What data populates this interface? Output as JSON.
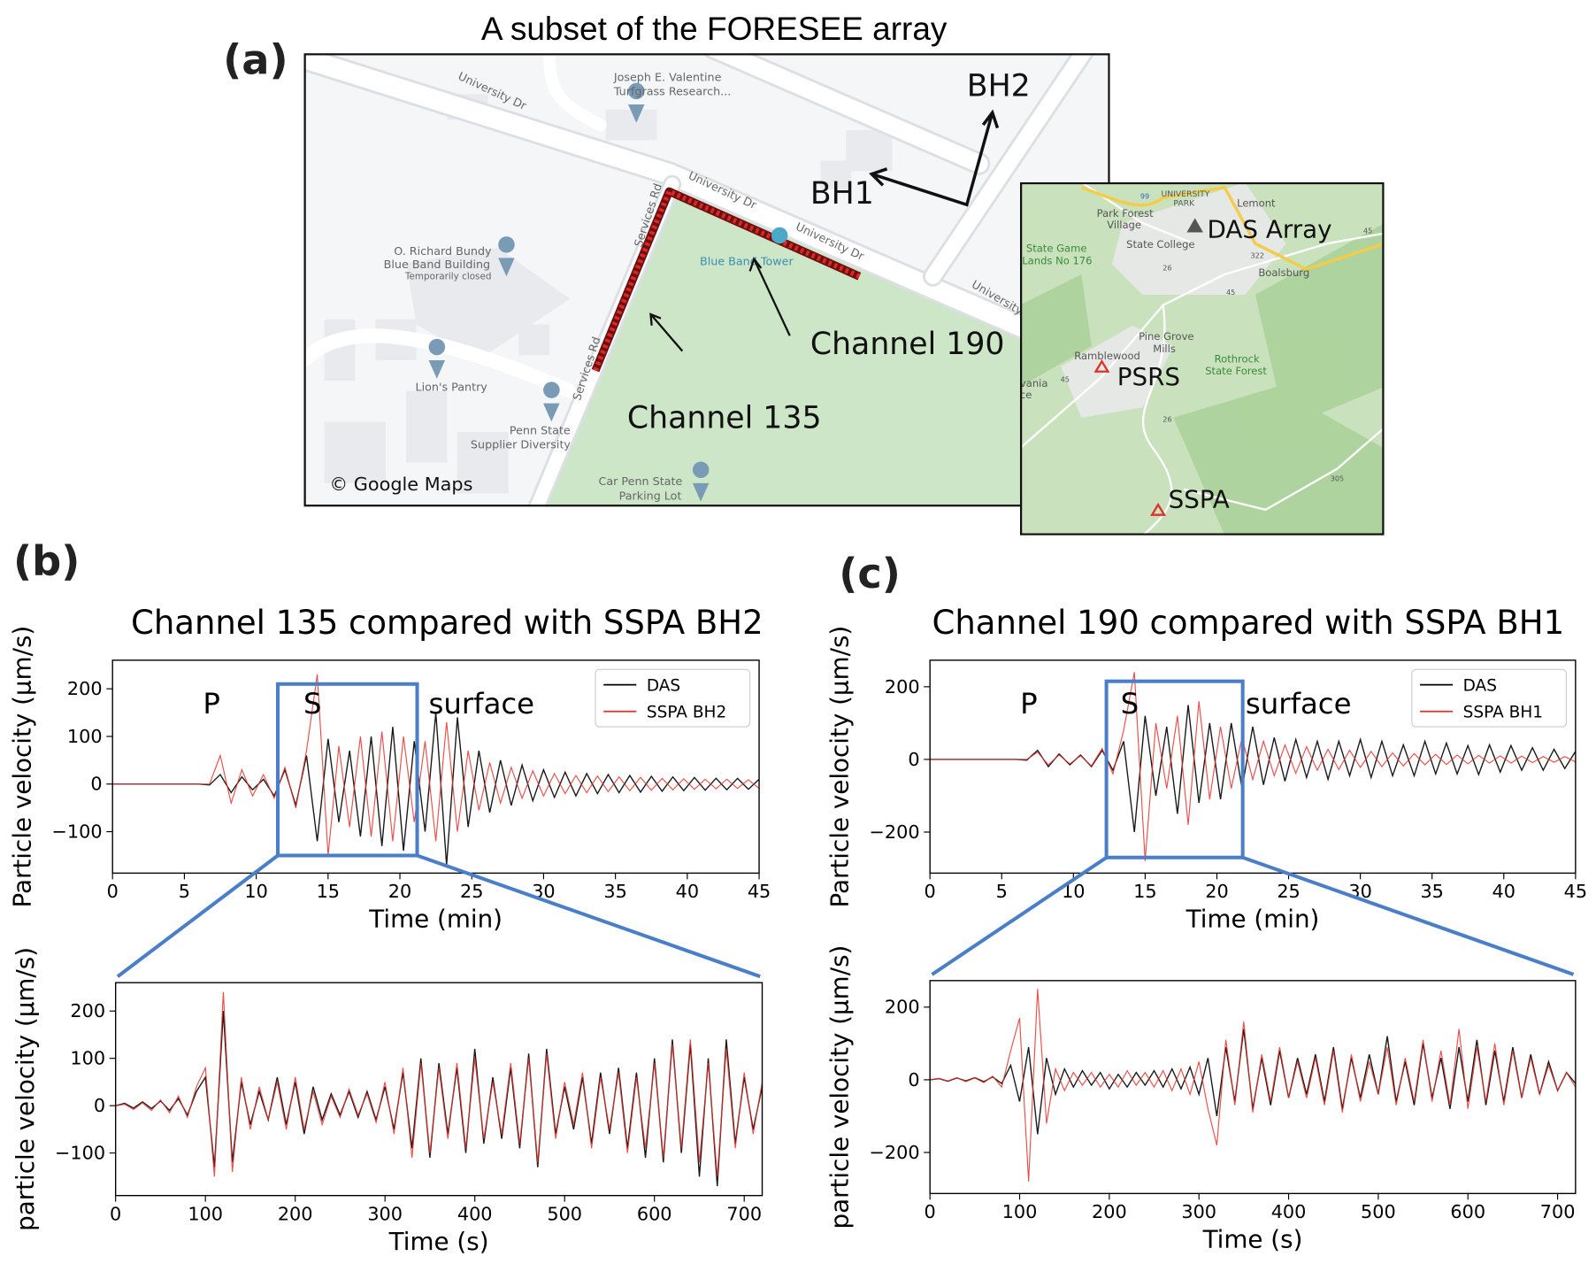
{
  "panel_labels": {
    "a": "(a)",
    "b": "(b)",
    "c": "(c)"
  },
  "map": {
    "title": "A subset of the FORESEE array",
    "labels": {
      "bh2": "BH2",
      "bh1": "BH1",
      "channel_190": "Channel 190",
      "channel_135": "Channel 135",
      "copyright": "© Google Maps",
      "valentine_1": "Joseph E. Valentine",
      "valentine_2": "Turfgrass Research...",
      "bundy_1": "O. Richard Bundy",
      "bundy_2": "Blue Band Building",
      "bundy_3": "Temporarily closed",
      "tower": "Blue Band Tower",
      "pantry": "Lion's Pantry",
      "supplier_1": "Penn State",
      "supplier_2": "Supplier Diversity",
      "parking_1": "Car Penn State",
      "parking_2": "Parking Lot",
      "road_univ_1": "University Dr",
      "road_univ_2": "University Dr",
      "road_univ_3": "University Dr",
      "road_univ_4": "University Dr",
      "road_services_1": "Services Rd",
      "road_services_2": "Services Rd"
    },
    "inset": {
      "das": "DAS Array",
      "psrs": "PSRS",
      "sspa": "SSPA",
      "park_forest_1": "Park Forest",
      "park_forest_2": "Village",
      "univ_park_1": "UNIVERSITY",
      "univ_park_2": "PARK",
      "lemont": "Lemont",
      "state_college": "State College",
      "game_lands_1": "State Game",
      "game_lands_2": "Lands No 176",
      "boalsburg": "Boalsburg",
      "pine_grove_1": "Pine Grove",
      "pine_grove_2": "Mills",
      "ramblewood": "Ramblewood",
      "rothrock_1": "Rothrock",
      "rothrock_2": "State Forest",
      "route_45a": "45",
      "route_45b": "45",
      "route_45c": "45",
      "route_26a": "26",
      "route_26b": "26",
      "route_322": "322",
      "route_305": "305",
      "route_99": "99",
      "frag_1": "vania",
      "frag_2": "ce"
    },
    "colors": {
      "park": "#cde6c8",
      "land": "#f5f6f8",
      "road": "#ffffff",
      "fiber": "#d42020",
      "inset_green": "#b9d9ac",
      "station": "#e0302a",
      "das_marker": "#555555"
    }
  },
  "chart_data": [
    {
      "id": "b-top",
      "type": "line",
      "title": "Channel 135 compared with SSPA BH2",
      "xlabel": "Time (min)",
      "ylabel": "Particle velocity (μm/s)",
      "xlim": [
        0,
        45
      ],
      "ylim": [
        -187,
        260
      ],
      "xticks": [
        0,
        5,
        10,
        15,
        20,
        25,
        30,
        35,
        40,
        45
      ],
      "xticklabels": [
        "0",
        "5",
        "10",
        "15",
        "20",
        "25",
        "30",
        "35",
        "40",
        "45"
      ],
      "yticks": [
        -100,
        0,
        100,
        200
      ],
      "yticklabels": [
        "−100",
        "0",
        "100",
        "200"
      ],
      "annotations": [
        {
          "text": "P",
          "x": 7,
          "y": 160
        },
        {
          "text": "S",
          "x": 14,
          "y": 160
        },
        {
          "text": "surface",
          "x": 22,
          "y": 160
        }
      ],
      "legend": {
        "position": "top-right"
      },
      "zoom_box": {
        "x": [
          11.5,
          21.2
        ],
        "y": [
          -150,
          210
        ],
        "color": "#4a7fc8"
      },
      "x": [
        0,
        0.75,
        1.5,
        2.25,
        3,
        3.75,
        4.5,
        5.25,
        6,
        6.75,
        7.5,
        8.25,
        9,
        9.75,
        10.5,
        11.25,
        12,
        12.75,
        13.5,
        14.25,
        15,
        15.75,
        16.5,
        17.25,
        18,
        18.75,
        19.5,
        20.25,
        21,
        21.75,
        22.5,
        23.25,
        24,
        24.75,
        25.5,
        26.25,
        27,
        27.75,
        28.5,
        29.25,
        30,
        30.75,
        31.5,
        32.25,
        33,
        33.75,
        34.5,
        35.25,
        36,
        36.75,
        37.5,
        38.25,
        39,
        39.75,
        40.5,
        41.25,
        42,
        42.75,
        43.5,
        44.25,
        45
      ],
      "series": [
        {
          "name": "DAS",
          "color": "#000000",
          "values": [
            0,
            0,
            0,
            0,
            0,
            0,
            0,
            0,
            0,
            -2,
            20,
            -18,
            15,
            -12,
            10,
            -25,
            30,
            -45,
            60,
            -120,
            95,
            -80,
            70,
            -110,
            100,
            -130,
            120,
            -140,
            90,
            -100,
            150,
            -170,
            140,
            -90,
            70,
            -60,
            50,
            -45,
            40,
            -35,
            30,
            -28,
            25,
            -25,
            22,
            -20,
            20,
            -18,
            18,
            -17,
            16,
            -15,
            15,
            -14,
            14,
            -13,
            12,
            -12,
            12,
            -11,
            10
          ]
        },
        {
          "name": "SSPA BH2",
          "color": "#e8302a",
          "values": [
            0,
            0,
            0,
            0,
            0,
            0,
            0,
            0,
            0,
            0,
            60,
            -40,
            30,
            -25,
            20,
            -30,
            35,
            -50,
            70,
            230,
            -150,
            80,
            -90,
            100,
            -110,
            110,
            -120,
            100,
            -80,
            90,
            -120,
            130,
            -100,
            70,
            -55,
            45,
            -40,
            35,
            -30,
            28,
            -25,
            22,
            -20,
            18,
            -18,
            17,
            -16,
            15,
            -14,
            14,
            -13,
            12,
            -12,
            11,
            -11,
            10,
            -10,
            10,
            -9,
            9,
            -9
          ]
        }
      ]
    },
    {
      "id": "b-bottom",
      "type": "line",
      "xlabel": "Time (s)",
      "ylabel": "particle velocity (μm/s)",
      "xlim": [
        0,
        720
      ],
      "ylim": [
        -190,
        260
      ],
      "xticks": [
        0,
        100,
        200,
        300,
        400,
        500,
        600,
        700
      ],
      "xticklabels": [
        "0",
        "100",
        "200",
        "300",
        "400",
        "500",
        "600",
        "700"
      ],
      "yticks": [
        -100,
        0,
        100,
        200
      ],
      "yticklabels": [
        "−100",
        "0",
        "100",
        "200"
      ],
      "x": [
        0,
        10,
        20,
        30,
        40,
        50,
        60,
        70,
        80,
        90,
        100,
        110,
        120,
        130,
        140,
        150,
        160,
        170,
        180,
        190,
        200,
        210,
        220,
        230,
        240,
        250,
        260,
        270,
        280,
        290,
        300,
        310,
        320,
        330,
        340,
        350,
        360,
        370,
        380,
        390,
        400,
        410,
        420,
        430,
        440,
        450,
        460,
        470,
        480,
        490,
        500,
        510,
        520,
        530,
        540,
        550,
        560,
        570,
        580,
        590,
        600,
        610,
        620,
        630,
        640,
        650,
        660,
        670,
        680,
        690,
        700,
        710,
        720
      ],
      "series": [
        {
          "name": "DAS",
          "color": "#000000",
          "values": [
            0,
            5,
            -5,
            8,
            -6,
            10,
            -10,
            15,
            -20,
            30,
            60,
            -130,
            200,
            -120,
            50,
            -40,
            30,
            -30,
            60,
            -40,
            50,
            -60,
            40,
            -30,
            25,
            -20,
            30,
            -25,
            30,
            -30,
            40,
            -50,
            70,
            -90,
            100,
            -110,
            90,
            -60,
            80,
            -100,
            120,
            -80,
            60,
            -70,
            80,
            -90,
            110,
            -130,
            120,
            -60,
            40,
            -50,
            60,
            -80,
            70,
            -60,
            80,
            -90,
            70,
            -110,
            100,
            -120,
            140,
            -100,
            130,
            -150,
            100,
            -170,
            140,
            -80,
            60,
            -50,
            40
          ]
        },
        {
          "name": "SSPA BH2",
          "color": "#e8302a",
          "values": [
            0,
            3,
            -8,
            6,
            -10,
            12,
            -15,
            20,
            -25,
            40,
            80,
            -150,
            240,
            -140,
            60,
            -50,
            40,
            -30,
            50,
            -50,
            60,
            -50,
            30,
            -40,
            20,
            -25,
            35,
            -20,
            25,
            -35,
            50,
            -60,
            80,
            -110,
            90,
            -100,
            80,
            -70,
            90,
            -90,
            100,
            -70,
            50,
            -60,
            90,
            -80,
            100,
            -120,
            110,
            -70,
            50,
            -40,
            70,
            -90,
            60,
            -50,
            70,
            -100,
            60,
            -90,
            90,
            -110,
            130,
            -90,
            140,
            -120,
            90,
            -150,
            120,
            -90,
            70,
            -60,
            50
          ]
        }
      ]
    },
    {
      "id": "c-top",
      "type": "line",
      "title": "Channel 190 compared with SSPA BH1",
      "xlabel": "Time (min)",
      "ylabel": "Particle velocity (μm/s)",
      "xlim": [
        0,
        45
      ],
      "ylim": [
        -313,
        273
      ],
      "xticks": [
        0,
        5,
        10,
        15,
        20,
        25,
        30,
        35,
        40,
        45
      ],
      "xticklabels": [
        "0",
        "5",
        "10",
        "15",
        "20",
        "25",
        "30",
        "35",
        "40",
        "45"
      ],
      "yticks": [
        -200,
        0,
        200
      ],
      "yticklabels": [
        "−200",
        "0",
        "200"
      ],
      "annotations": [
        {
          "text": "P",
          "x": 7,
          "y": 160
        },
        {
          "text": "S",
          "x": 14,
          "y": 160
        },
        {
          "text": "surface",
          "x": 22,
          "y": 160
        }
      ],
      "legend": {
        "position": "top-right"
      },
      "zoom_box": {
        "x": [
          12.3,
          21.8
        ],
        "y": [
          -270,
          215
        ],
        "color": "#4a7fc8"
      },
      "x": [
        0,
        0.75,
        1.5,
        2.25,
        3,
        3.75,
        4.5,
        5.25,
        6,
        6.75,
        7.5,
        8.25,
        9,
        9.75,
        10.5,
        11.25,
        12,
        12.75,
        13.5,
        14.25,
        15,
        15.75,
        16.5,
        17.25,
        18,
        18.75,
        19.5,
        20.25,
        21,
        21.75,
        22.5,
        23.25,
        24,
        24.75,
        25.5,
        26.25,
        27,
        27.75,
        28.5,
        29.25,
        30,
        30.75,
        31.5,
        32.25,
        33,
        33.75,
        34.5,
        35.25,
        36,
        36.75,
        37.5,
        38.25,
        39,
        39.75,
        40.5,
        41.25,
        42,
        42.75,
        43.5,
        44.25,
        45
      ],
      "series": [
        {
          "name": "DAS",
          "color": "#000000",
          "values": [
            0,
            0,
            0,
            0,
            0,
            0,
            0,
            0,
            0,
            -2,
            25,
            -20,
            15,
            -15,
            12,
            -20,
            25,
            -30,
            50,
            -200,
            120,
            -100,
            90,
            -150,
            150,
            -120,
            100,
            -110,
            100,
            -80,
            90,
            -70,
            60,
            -60,
            55,
            -50,
            50,
            -55,
            50,
            -45,
            55,
            -50,
            50,
            -45,
            40,
            -45,
            50,
            -40,
            45,
            -40,
            38,
            -42,
            40,
            -35,
            38,
            -30,
            32,
            -30,
            28,
            -25,
            22
          ]
        },
        {
          "name": "SSPA BH1",
          "color": "#e8302a",
          "values": [
            0,
            0,
            0,
            0,
            0,
            0,
            0,
            0,
            0,
            0,
            20,
            -15,
            12,
            -12,
            10,
            -18,
            30,
            -40,
            80,
            240,
            -280,
            100,
            -80,
            120,
            -180,
            160,
            -110,
            90,
            -80,
            60,
            -55,
            50,
            -45,
            40,
            -38,
            35,
            -30,
            28,
            -28,
            25,
            -22,
            22,
            -20,
            18,
            -18,
            16,
            -15,
            14,
            -14,
            12,
            -12,
            11,
            -10,
            10,
            -10,
            9,
            -9,
            8,
            -8,
            8,
            -7
          ]
        }
      ]
    },
    {
      "id": "c-bottom",
      "type": "line",
      "xlabel": "Time (s)",
      "ylabel": "particle velocity (μm/s)",
      "xlim": [
        0,
        720
      ],
      "ylim": [
        -313,
        273
      ],
      "xticks": [
        0,
        100,
        200,
        300,
        400,
        500,
        600,
        700
      ],
      "xticklabels": [
        "0",
        "100",
        "200",
        "300",
        "400",
        "500",
        "600",
        "700"
      ],
      "yticks": [
        -200,
        0,
        200
      ],
      "yticklabels": [
        "−200",
        "0",
        "200"
      ],
      "x": [
        0,
        10,
        20,
        30,
        40,
        50,
        60,
        70,
        80,
        90,
        100,
        110,
        120,
        130,
        140,
        150,
        160,
        170,
        180,
        190,
        200,
        210,
        220,
        230,
        240,
        250,
        260,
        270,
        280,
        290,
        300,
        310,
        320,
        330,
        340,
        350,
        360,
        370,
        380,
        390,
        400,
        410,
        420,
        430,
        440,
        450,
        460,
        470,
        480,
        490,
        500,
        510,
        520,
        530,
        540,
        550,
        560,
        570,
        580,
        590,
        600,
        610,
        620,
        630,
        640,
        650,
        660,
        670,
        680,
        690,
        700,
        710,
        720
      ],
      "series": [
        {
          "name": "DAS",
          "color": "#000000",
          "values": [
            0,
            3,
            -4,
            5,
            -3,
            6,
            -5,
            8,
            -10,
            40,
            -60,
            90,
            -150,
            60,
            -40,
            30,
            -20,
            25,
            -15,
            20,
            -25,
            15,
            -20,
            20,
            -15,
            25,
            -20,
            30,
            -25,
            35,
            -40,
            60,
            -100,
            90,
            -60,
            140,
            -80,
            60,
            -70,
            80,
            -50,
            60,
            -40,
            70,
            -60,
            90,
            -80,
            60,
            -50,
            70,
            -40,
            120,
            -60,
            50,
            -70,
            100,
            -50,
            60,
            -80,
            90,
            -60,
            110,
            -70,
            80,
            -60,
            90,
            -50,
            70,
            -40,
            50,
            -30,
            20,
            -10
          ]
        },
        {
          "name": "SSPA BH1",
          "color": "#e8302a",
          "values": [
            0,
            4,
            -3,
            6,
            -5,
            5,
            -8,
            10,
            -20,
            80,
            170,
            -280,
            250,
            -120,
            30,
            -30,
            20,
            -15,
            20,
            -20,
            15,
            -20,
            25,
            -15,
            20,
            -20,
            25,
            -30,
            30,
            -40,
            50,
            -80,
            -180,
            110,
            -70,
            160,
            -90,
            70,
            -60,
            90,
            -50,
            50,
            -50,
            60,
            -70,
            80,
            -90,
            70,
            -60,
            50,
            -40,
            90,
            -70,
            60,
            -60,
            110,
            -60,
            80,
            -70,
            140,
            -80,
            90,
            -60,
            100,
            -70,
            80,
            -50,
            60,
            -40,
            40,
            -30,
            20,
            -20
          ]
        }
      ]
    }
  ]
}
